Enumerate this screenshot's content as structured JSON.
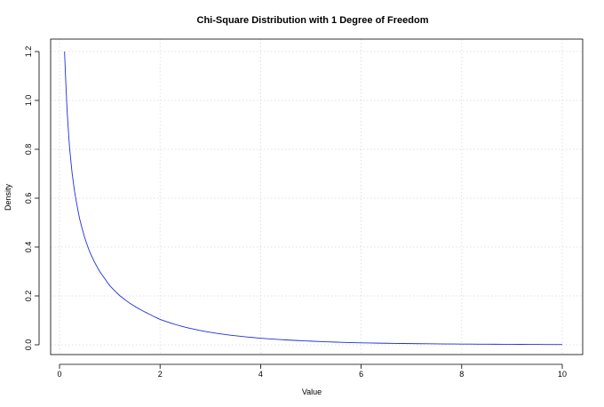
{
  "chart_data": {
    "type": "line",
    "title": "Chi-Square Distribution with 1 Degree of Freedom",
    "xlabel": "Value",
    "ylabel": "Density",
    "xlim": [
      0,
      10
    ],
    "ylim": [
      0,
      1.2
    ],
    "x_ticks": [
      0,
      2,
      4,
      6,
      8,
      10
    ],
    "x_tick_labels": [
      "0",
      "2",
      "4",
      "6",
      "8",
      "10"
    ],
    "y_ticks": [
      0.0,
      0.2,
      0.4,
      0.6,
      0.8,
      1.0,
      1.2
    ],
    "y_tick_labels": [
      "0.0",
      "0.2",
      "0.4",
      "0.6",
      "0.8",
      "1.0",
      "1.2"
    ],
    "grid": true,
    "series": [
      {
        "color": "#1f2ee0",
        "x": [
          0.1,
          0.15,
          0.2,
          0.25,
          0.3,
          0.4,
          0.5,
          0.6,
          0.7,
          0.8,
          0.9,
          1.0,
          1.2,
          1.4,
          1.6,
          1.8,
          2.0,
          2.5,
          3.0,
          3.5,
          4.0,
          4.5,
          5.0,
          6.0,
          7.0,
          8.0,
          9.0,
          10.0
        ],
        "y": [
          1.2,
          0.963,
          0.807,
          0.704,
          0.627,
          0.516,
          0.439,
          0.381,
          0.337,
          0.3,
          0.271,
          0.242,
          0.201,
          0.17,
          0.145,
          0.124,
          0.104,
          0.072,
          0.051,
          0.037,
          0.027,
          0.02,
          0.015,
          0.008,
          0.005,
          0.003,
          0.002,
          0.001
        ]
      }
    ]
  }
}
